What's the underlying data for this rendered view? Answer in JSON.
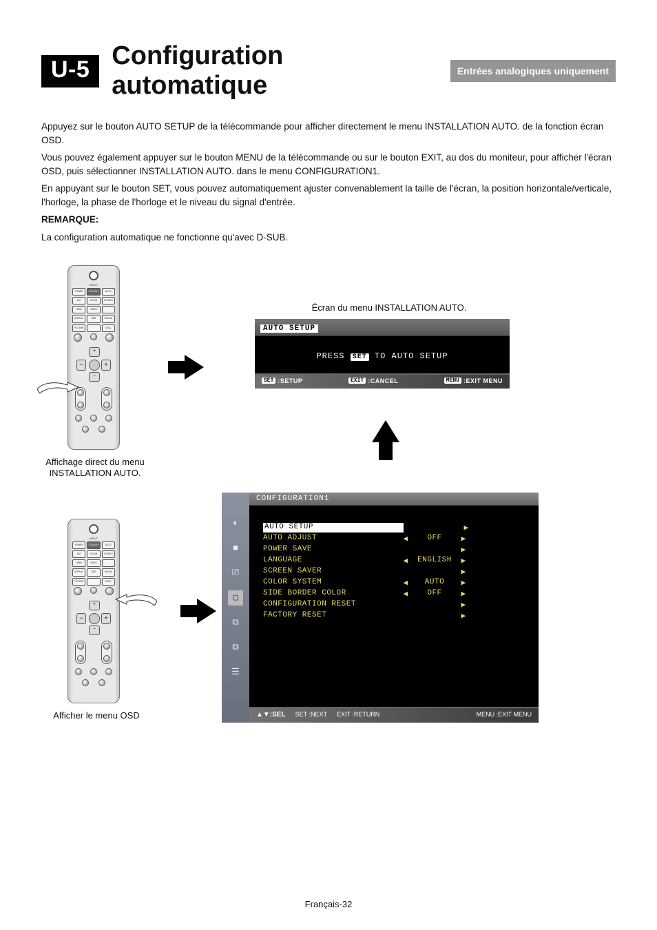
{
  "header": {
    "tag": "U-5",
    "title": "Configuration automatique",
    "pill": "Entrées analogiques uniquement"
  },
  "body": {
    "p1": "Appuyez sur le bouton AUTO SETUP de la télécommande pour afficher directement le menu INSTALLATION AUTO. de la fonction écran OSD.",
    "p2": "Vous pouvez également appuyer sur le bouton MENU de la télécommande ou sur le bouton EXIT, au dos du moniteur, pour afficher l'écran OSD, puis sélectionner INSTALLATION AUTO. dans le menu CONFIGURATION1.",
    "p3": "En appuyant sur le bouton SET, vous pouvez automatiquement ajuster convenablement la taille de l'écran, la position horizontale/verticale, l'horloge, la phase de l'horloge et le niveau du signal d'entrée.",
    "remarque_label": "REMARQUE:",
    "remarque_text": "La configuration automatique ne fonctionne qu'avec D-SUB."
  },
  "captions": {
    "remote1": "Affichage direct du menu INSTALLATION AUTO.",
    "remote2": "Afficher le menu OSD",
    "autoScreenTitle": "Écran du menu INSTALLATION AUTO."
  },
  "remote": {
    "row1": [
      "POWER",
      "STANDBY",
      "AUTO SETUP"
    ],
    "row2": [
      "DVI",
      "D-SUB",
      "S-VIDEO"
    ],
    "row3": [
      "HDMI",
      "VIDEO",
      ""
    ],
    "row4": [
      "DISPLAY",
      "SIZE",
      "SOUND"
    ],
    "row5": [
      "PICTURE MODE",
      "",
      "STILL"
    ]
  },
  "autoSetup": {
    "title": "AUTO SETUP",
    "line_press": "PRESS",
    "line_set": "SET",
    "line_to": "TO AUTO SETUP",
    "footer": {
      "set": "SET",
      "setLabel": ":SETUP",
      "exit": "EXIT",
      "exitLabel": ":CANCEL",
      "menu": "MENU",
      "menuLabel": ":EXIT MENU"
    }
  },
  "config1": {
    "title": "CONFIGURATION1",
    "rows": [
      {
        "name": "AUTO SETUP",
        "selected": true,
        "arrL": "",
        "val": "",
        "arrR": "",
        "arrSingle": "▶"
      },
      {
        "name": "AUTO ADJUST",
        "arrL": "◀",
        "val": "OFF",
        "arrR": "▶"
      },
      {
        "name": "POWER SAVE",
        "arrSingle": "▶"
      },
      {
        "name": "LANGUAGE",
        "arrL": "◀",
        "val": "ENGLISH",
        "arrR": "▶"
      },
      {
        "name": "SCREEN SAVER",
        "arrSingle": "▶"
      },
      {
        "name": "COLOR SYSTEM",
        "arrL": "◀",
        "val": "AUTO",
        "arrR": "▶"
      },
      {
        "name": "SIDE BORDER COLOR",
        "arrL": "◀",
        "val": "OFF",
        "arrR": "▶"
      },
      {
        "name": "CONFIGURATION RESET",
        "arrSingle": "▶"
      },
      {
        "name": "FACTORY RESET",
        "arrSingle": "▶"
      }
    ],
    "footer": {
      "sel": "▲▼:SEL",
      "set": "SET",
      "setLabel": ":NEXT",
      "exit": "EXIT",
      "exitLabel": ":RETURN",
      "menu": "MENU",
      "menuLabel": ":EXIT MENU"
    },
    "iconcol_glyphs": [
      "◐",
      "■",
      "⎚",
      "▢",
      "⧉",
      "⧉",
      "☰"
    ]
  },
  "footer": {
    "pageNumber": "Français-32"
  },
  "style": {
    "osd_text_color": "#E6D96A",
    "osd_bg": "#000000",
    "iconcol_bg_top": "#8c91a0",
    "iconcol_bg_bottom": "#6a6f7d"
  }
}
